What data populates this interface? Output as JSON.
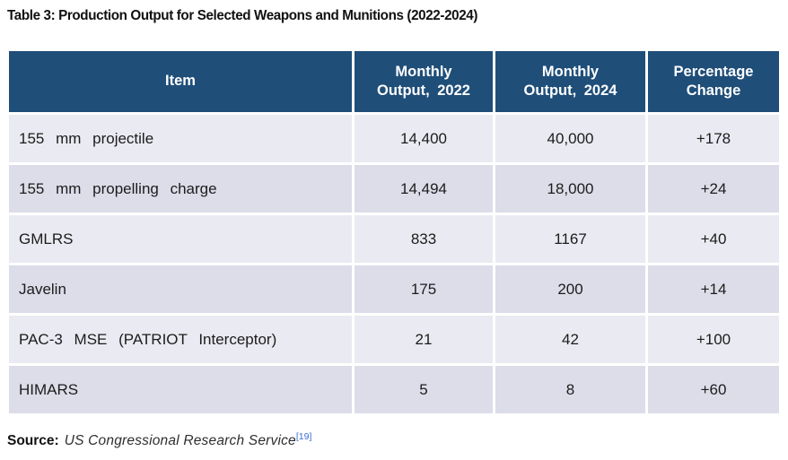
{
  "title": "Table 3: Production Output for Selected Weapons and Munitions (2022-2024)",
  "table": {
    "headers": [
      {
        "line1": "Item",
        "line2": ""
      },
      {
        "line1": "Monthly",
        "line2": "Output, 2022"
      },
      {
        "line1": "Monthly",
        "line2": "Output, 2024"
      },
      {
        "line1": "Percentage",
        "line2": "Change"
      }
    ],
    "rows": [
      {
        "item": "155 mm projectile",
        "out2022": "14,400",
        "out2024": "40,000",
        "change": "+178"
      },
      {
        "item": "155 mm propelling charge",
        "out2022": "14,494",
        "out2024": "18,000",
        "change": "+24"
      },
      {
        "item": "GMLRS",
        "out2022": "833",
        "out2024": "1167",
        "change": "+40"
      },
      {
        "item": "Javelin",
        "out2022": "175",
        "out2024": "200",
        "change": "+14"
      },
      {
        "item": "PAC-3 MSE (PATRIOT Interceptor)",
        "out2022": "21",
        "out2024": "42",
        "change": "+100"
      },
      {
        "item": "HIMARS",
        "out2022": "5",
        "out2024": "8",
        "change": "+60"
      }
    ]
  },
  "source": {
    "label": "Source:",
    "text": "US Congressional Research Service",
    "citation": "[19]"
  },
  "colors": {
    "header_bg": "#1f4e79",
    "header_text": "#ffffff",
    "row_light": "#eaeaf2",
    "row_dark": "#dcdde9",
    "body_text": "#1c1c1c",
    "citation_link": "#3a6bd5"
  }
}
